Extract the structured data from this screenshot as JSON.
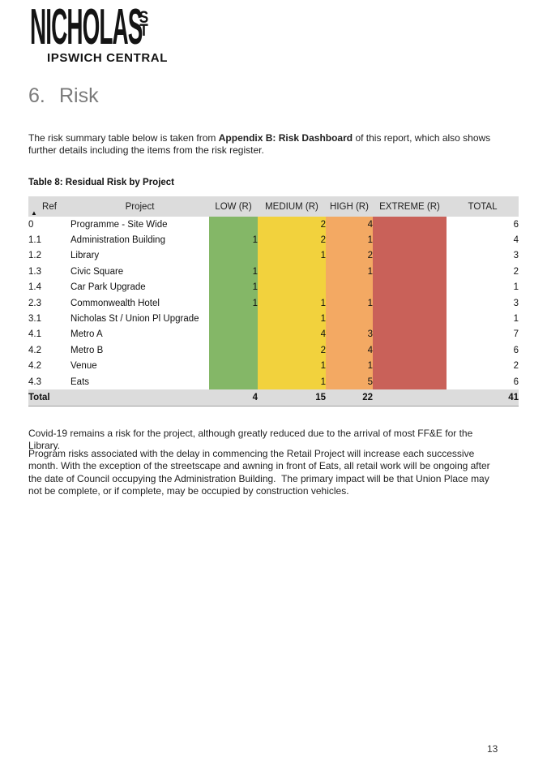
{
  "logo": {
    "brand": "NICHOLAS",
    "st_top": "S",
    "st_bottom": "T",
    "subtitle": "IPSWICH CENTRAL"
  },
  "heading": {
    "number": "6.",
    "title": "Risk"
  },
  "intro": {
    "text_before_bold": "The risk summary table below is taken from ",
    "bold_text": "Appendix B: Risk Dashboard",
    "text_after_bold": " of this report, which also shows further details including the items from the risk register."
  },
  "table": {
    "caption": "Table 8: Residual Risk by Project",
    "sort_icon": "▲",
    "columns": [
      "Ref",
      "Project",
      "LOW (R)",
      "MEDIUM (R)",
      "HIGH (R)",
      "EXTREME (R)",
      "TOTAL"
    ],
    "rows": [
      {
        "ref": "0",
        "project": "Programme - Site Wide",
        "low": "",
        "medium": "2",
        "high": "4",
        "extreme": "",
        "total": "6"
      },
      {
        "ref": "1.1",
        "project": "Administration Building",
        "low": "1",
        "medium": "2",
        "high": "1",
        "extreme": "",
        "total": "4"
      },
      {
        "ref": "1.2",
        "project": "Library",
        "low": "",
        "medium": "1",
        "high": "2",
        "extreme": "",
        "total": "3"
      },
      {
        "ref": "1.3",
        "project": "Civic Square",
        "low": "1",
        "medium": "",
        "high": "1",
        "extreme": "",
        "total": "2"
      },
      {
        "ref": "1.4",
        "project": "Car Park Upgrade",
        "low": "1",
        "medium": "",
        "high": "",
        "extreme": "",
        "total": "1"
      },
      {
        "ref": "2.3",
        "project": "Commonwealth Hotel",
        "low": "1",
        "medium": "1",
        "high": "1",
        "extreme": "",
        "total": "3"
      },
      {
        "ref": "3.1",
        "project": "Nicholas St / Union Pl Upgrade",
        "low": "",
        "medium": "1",
        "high": "",
        "extreme": "",
        "total": "1"
      },
      {
        "ref": "4.1",
        "project": "Metro A",
        "low": "",
        "medium": "4",
        "high": "3",
        "extreme": "",
        "total": "7"
      },
      {
        "ref": "4.2",
        "project": "Metro B",
        "low": "",
        "medium": "2",
        "high": "4",
        "extreme": "",
        "total": "6"
      },
      {
        "ref": "4.2",
        "project": "Venue",
        "low": "",
        "medium": "1",
        "high": "1",
        "extreme": "",
        "total": "2"
      },
      {
        "ref": "4.3",
        "project": "Eats",
        "low": "",
        "medium": "1",
        "high": "5",
        "extreme": "",
        "total": "6"
      }
    ],
    "total_row": {
      "label": "Total",
      "low": "4",
      "medium": "15",
      "high": "22",
      "extreme": "",
      "total": "41"
    },
    "colors": {
      "low": "#84b767",
      "medium": "#f2d23d",
      "high": "#f3a963",
      "extreme": "#c96159",
      "band_gray": "#dcdcdc"
    }
  },
  "paragraphs": {
    "covid": "Covid-19 remains a risk for the project, although greatly reduced due to the arrival of most FF&E for the Library.",
    "program": "Program risks associated with the delay in commencing the Retail Project will increase each successive month. With the exception of the streetscape and awning in front of Eats, all retail work will be ongoing after the date of Council occupying the Administration Building.  The primary impact will be that Union Place may not be complete, or if complete, may be occupied by construction vehicles."
  },
  "page_number": "13"
}
